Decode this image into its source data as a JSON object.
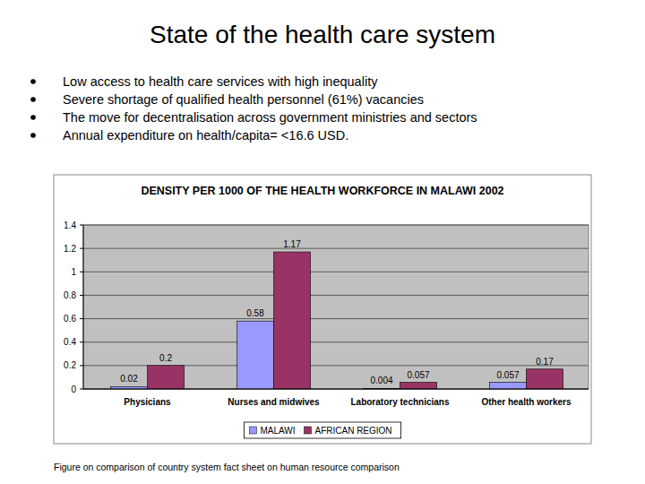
{
  "slide": {
    "title": "State of the health care system",
    "bullets": [
      "Low access to health care services with high inequality",
      "Severe shortage of qualified health personnel (61%) vacancies",
      "The move for decentralisation across government ministries and sectors",
      "Annual expenditure on health/capita= <16.6 USD."
    ],
    "caption": "Figure on comparison of country system fact sheet on human resource comparison"
  },
  "chart_data": {
    "type": "bar",
    "title": "DENSITY PER 1000 OF THE HEALTH WORKFORCE IN MALAWI 2002",
    "categories": [
      "Physicians",
      "Nurses and midwives",
      "Laboratory technicians",
      "Other health workers"
    ],
    "series": [
      {
        "name": "MALAWI",
        "color": "#9999ff",
        "values": [
          0.02,
          0.58,
          0.004,
          0.057
        ]
      },
      {
        "name": "AFRICAN REGION",
        "color": "#993366",
        "values": [
          0.2,
          1.17,
          0.057,
          0.17
        ]
      }
    ],
    "ylim": [
      0,
      1.4
    ],
    "yticks": [
      0,
      0.2,
      0.4,
      0.6,
      0.8,
      1,
      1.2,
      1.4
    ],
    "grid": true,
    "data_labels": true,
    "legend": "bottom"
  }
}
